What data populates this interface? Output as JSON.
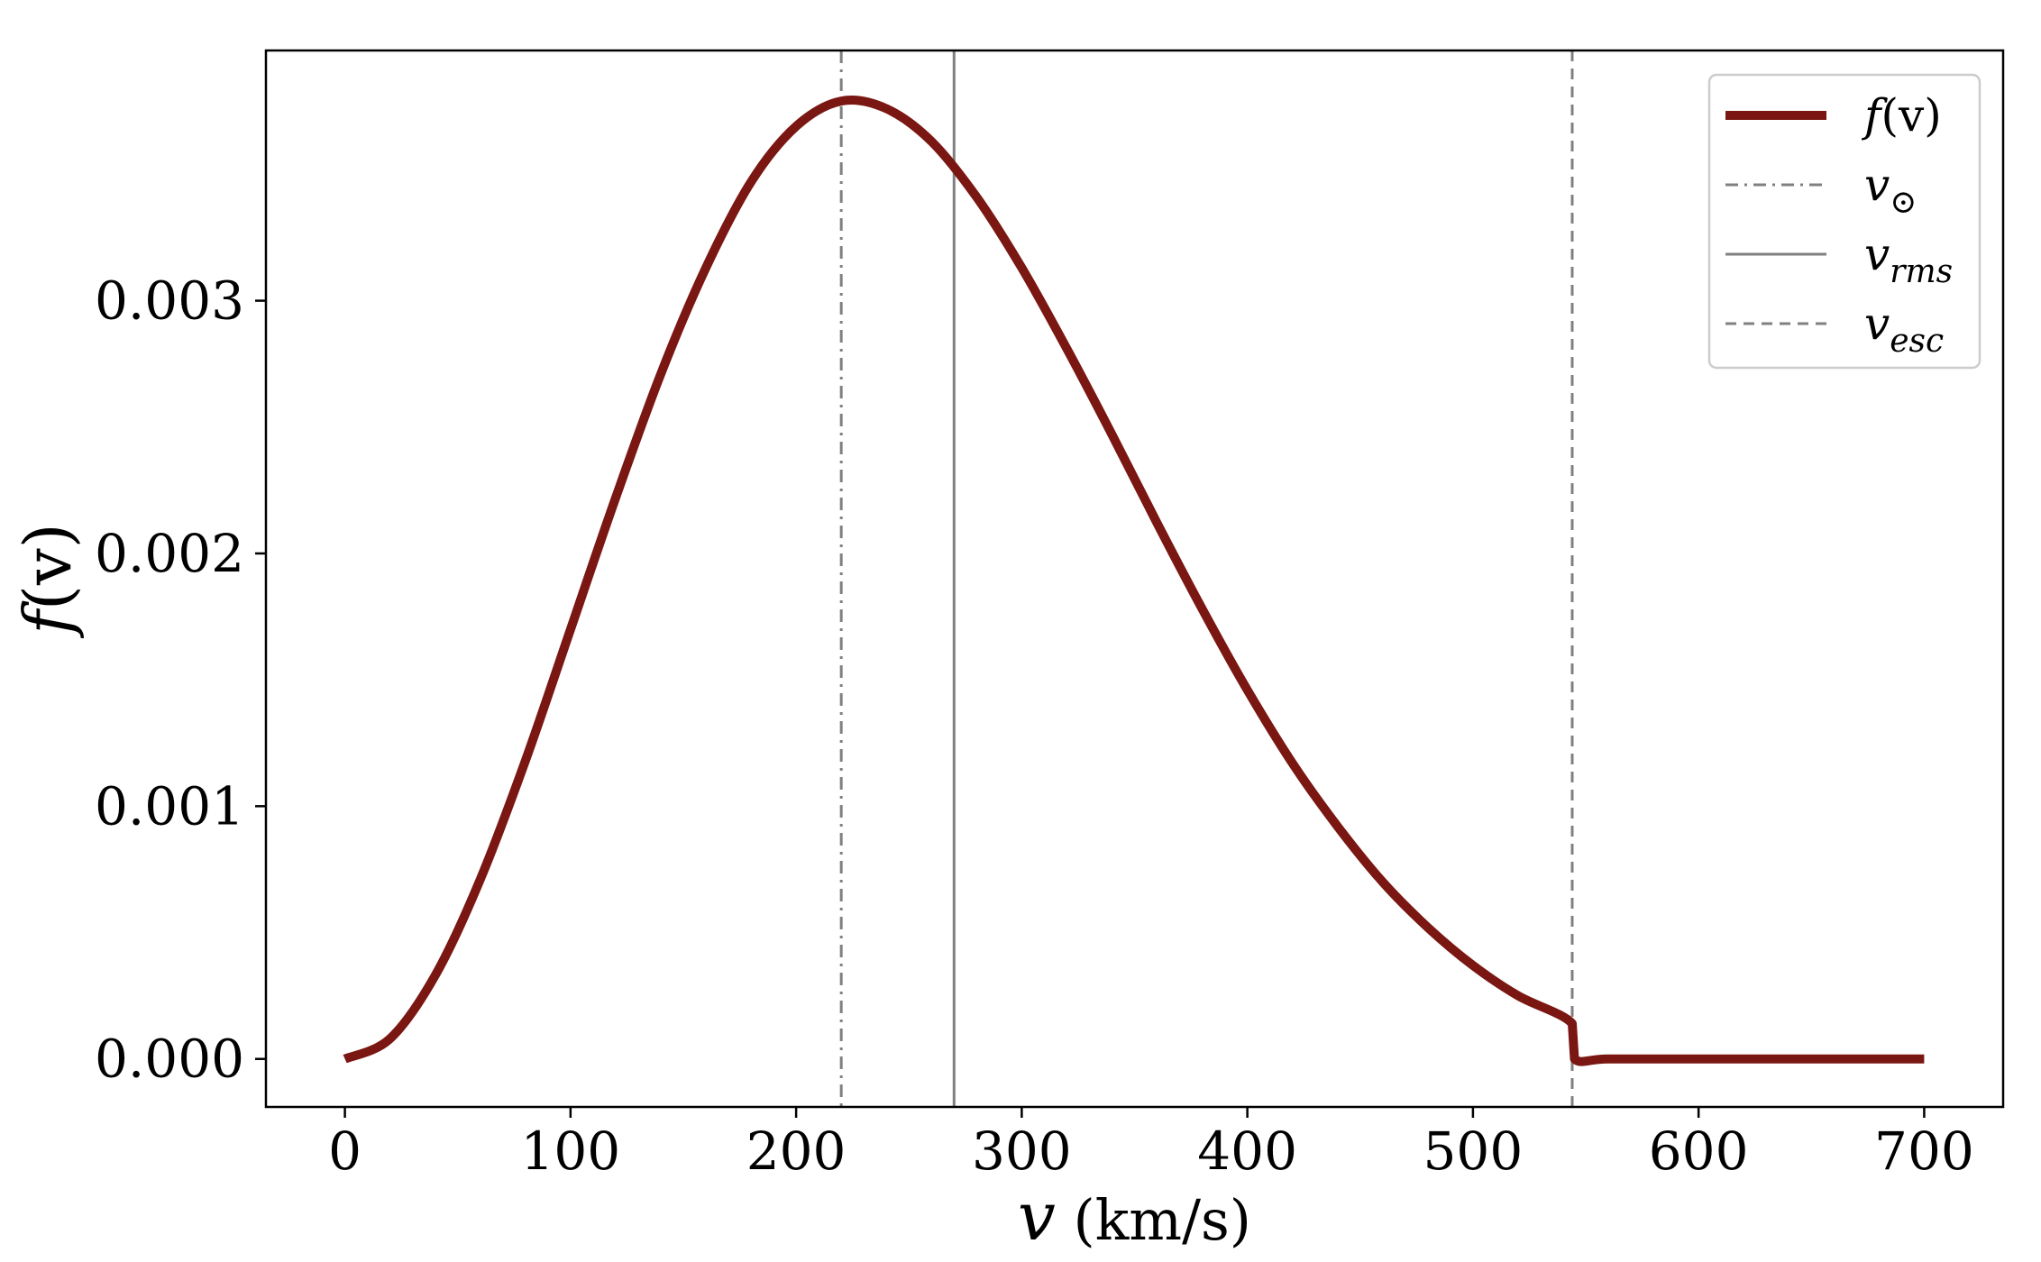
{
  "chart_data": {
    "type": "line",
    "title": "",
    "xlabel": {
      "symbol": "v",
      "unit": " (km/s)"
    },
    "ylabel": {
      "symbol": "f",
      "arg": "(v)"
    },
    "xlim": [
      -35,
      735
    ],
    "ylim": [
      -0.00019,
      0.00399
    ],
    "xticks": [
      0,
      100,
      200,
      300,
      400,
      500,
      600,
      700
    ],
    "xtick_labels": [
      "0",
      "100",
      "200",
      "300",
      "400",
      "500",
      "600",
      "700"
    ],
    "yticks": [
      0.0,
      0.001,
      0.002,
      0.003
    ],
    "ytick_labels": [
      "0.000",
      "0.001",
      "0.002",
      "0.003"
    ],
    "grid": false,
    "legend_position": "top-right",
    "series": [
      {
        "name": "f(v)",
        "style": "solid",
        "color": "#7a1712",
        "x": [
          0,
          20,
          40,
          60,
          80,
          100,
          120,
          140,
          160,
          180,
          200,
          220,
          240,
          260,
          280,
          300,
          320,
          340,
          360,
          380,
          400,
          420,
          440,
          460,
          480,
          500,
          520,
          544,
          545,
          560,
          600,
          650,
          700
        ],
        "y": [
          0.0,
          8e-05,
          0.00033,
          0.00071,
          0.00118,
          0.0017,
          0.00222,
          0.00271,
          0.00313,
          0.00347,
          0.00369,
          0.00379,
          0.00376,
          0.00363,
          0.00341,
          0.00313,
          0.00281,
          0.00247,
          0.00212,
          0.00178,
          0.00146,
          0.00117,
          0.00092,
          0.0007,
          0.00052,
          0.00037,
          0.00025,
          0.00014,
          0.0,
          0.0,
          0.0,
          0.0,
          0.0
        ]
      }
    ],
    "vlines": [
      {
        "name": "v_sun",
        "x": 220,
        "style": "dashdot",
        "color": "#808080"
      },
      {
        "name": "v_rms",
        "x": 270,
        "style": "solid",
        "color": "#808080"
      },
      {
        "name": "v_esc",
        "x": 544,
        "style": "dashed",
        "color": "#808080"
      }
    ],
    "legend": [
      {
        "name": "f(v)",
        "symbol": "f",
        "rest": "(v)",
        "sub": "",
        "style": "solid",
        "color": "#7a1712"
      },
      {
        "name": "v_sun",
        "symbol": "v",
        "rest": "",
        "sub": "⊙",
        "style": "dashdot",
        "color": "#808080"
      },
      {
        "name": "v_rms",
        "symbol": "v",
        "rest": "",
        "sub": "rms",
        "style": "solid",
        "color": "#808080"
      },
      {
        "name": "v_esc",
        "symbol": "v",
        "rest": "",
        "sub": "esc",
        "style": "dashed",
        "color": "#808080"
      }
    ]
  }
}
